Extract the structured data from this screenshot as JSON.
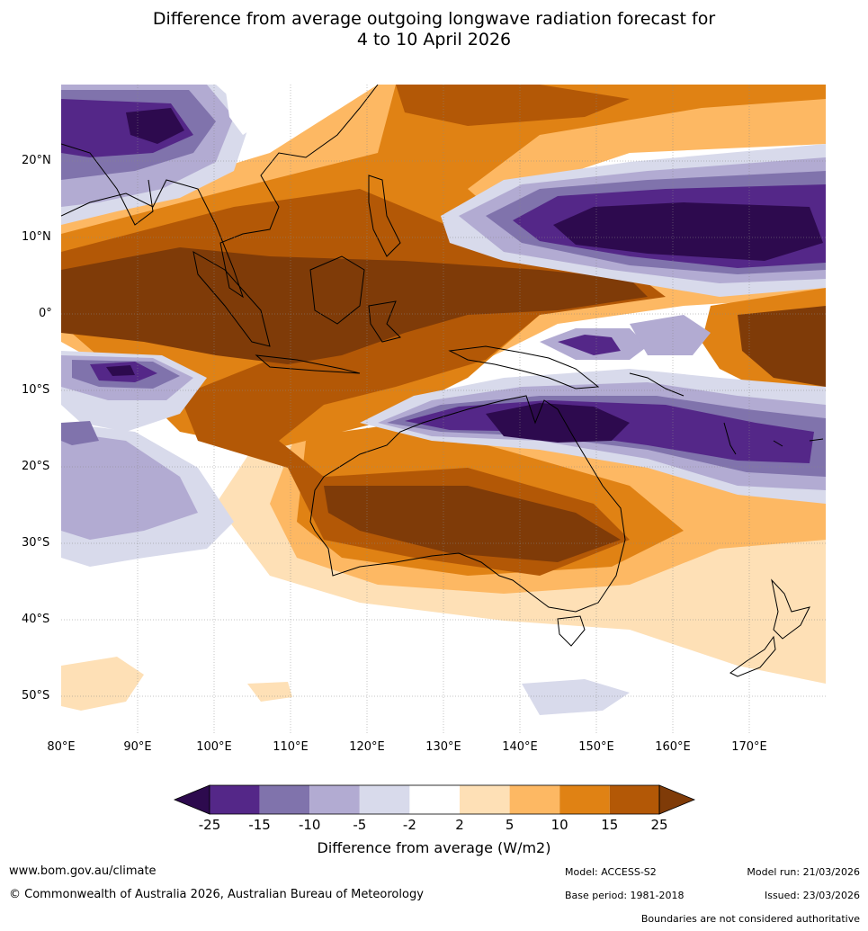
{
  "title": {
    "line1": "Difference from average outgoing longwave radiation forecast for",
    "line2": "4 to 10 April 2026"
  },
  "axes": {
    "lat_labels": [
      "20°N",
      "10°N",
      "0°",
      "10°S",
      "20°S",
      "30°S",
      "40°S",
      "50°S"
    ],
    "lon_labels": [
      "80°E",
      "90°E",
      "100°E",
      "110°E",
      "120°E",
      "130°E",
      "140°E",
      "150°E",
      "160°E",
      "170°E"
    ]
  },
  "colorbar": {
    "title": "Difference from average (W/m2)",
    "ticks": [
      "-25",
      "-15",
      "-10",
      "-5",
      "-2",
      "2",
      "5",
      "10",
      "15",
      "25"
    ],
    "colors": [
      "#2d0a4e",
      "#542788",
      "#8073ac",
      "#b2abd2",
      "#d8daeb",
      "#ffffff",
      "#fee0b6",
      "#fdb863",
      "#e08214",
      "#b35806",
      "#7f3b08"
    ]
  },
  "footer": {
    "website": "www.bom.gov.au/climate",
    "copyright": "© Commonwealth of Australia 2026, Australian Bureau of Meteorology",
    "model": "Model: ACCESS-S2",
    "base_period": "Base period: 1981-2018",
    "model_run": "Model run: 21/03/2026",
    "issued": "Issued: 23/03/2026",
    "disclaimer": "Boundaries are not considered authoritative"
  }
}
